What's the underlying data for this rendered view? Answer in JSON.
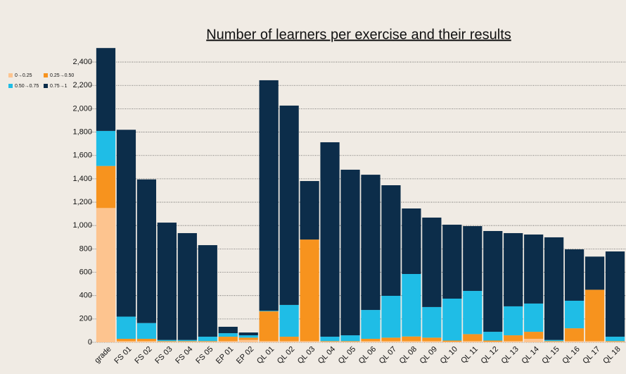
{
  "chart_data": {
    "type": "stacked_bar",
    "title": "Number of learners per exercise and their results",
    "categories": [
      "grade",
      "FS 01",
      "FS 02",
      "FS 03",
      "FS 04",
      "FS 05",
      "EP 01",
      "EP 02",
      "QL 01",
      "QL 02",
      "QL 03",
      "QL 04",
      "QL 05",
      "QL 06",
      "QL 07",
      "QL 08",
      "QL 09",
      "QL 10",
      "QL 11",
      "QL 12",
      "QL 13",
      "QL 14",
      "QL 15",
      "QL 16",
      "QL 17",
      "QL 18"
    ],
    "series": [
      {
        "name": "0→0.25",
        "color": "#fdc48f",
        "values": [
          1150,
          10,
          10,
          5,
          5,
          5,
          10,
          20,
          10,
          10,
          10,
          5,
          5,
          10,
          10,
          10,
          10,
          5,
          10,
          5,
          10,
          30,
          5,
          10,
          10,
          5
        ]
      },
      {
        "name": "0.25→0.50",
        "color": "#f7931e",
        "values": [
          360,
          20,
          20,
          5,
          5,
          5,
          38,
          20,
          255,
          38,
          870,
          5,
          5,
          20,
          30,
          40,
          30,
          10,
          60,
          10,
          50,
          60,
          5,
          110,
          440,
          5
        ]
      },
      {
        "name": "0.50→0.75",
        "color": "#1fbde6",
        "values": [
          300,
          190,
          135,
          10,
          10,
          38,
          30,
          20,
          5,
          272,
          0,
          38,
          50,
          247,
          358,
          535,
          262,
          359,
          370,
          75,
          248,
          242,
          10,
          236,
          0,
          38
        ]
      },
      {
        "name": "0.75→1",
        "color": "#0c2d4a",
        "values": [
          710,
          1600,
          1230,
          1005,
          915,
          784,
          55,
          24,
          1974,
          1707,
          501,
          1665,
          1418,
          1158,
          947,
          561,
          766,
          633,
          555,
          863,
          627,
          591,
          879,
          440,
          284,
          730
        ]
      }
    ],
    "ylim": [
      0,
      2600
    ],
    "yticks": [
      0,
      200,
      400,
      600,
      800,
      {
        "value": 1000,
        "label": "1,000"
      },
      {
        "value": 1200,
        "label": "1,200"
      },
      {
        "value": 1400,
        "label": "1,400"
      },
      {
        "value": 1600,
        "label": "1,600"
      },
      {
        "value": 1800,
        "label": "1,800"
      },
      {
        "value": 2000,
        "label": "2,000"
      },
      {
        "value": 2200,
        "label": "2,200"
      },
      {
        "value": 2400,
        "label": "2,400"
      }
    ],
    "grid": true
  }
}
